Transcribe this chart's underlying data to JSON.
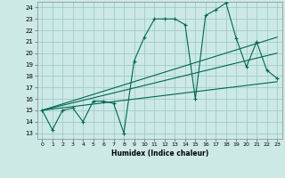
{
  "title": "",
  "xlabel": "Humidex (Indice chaleur)",
  "xlim": [
    -0.5,
    23.5
  ],
  "ylim": [
    12.5,
    24.5
  ],
  "xticks": [
    0,
    1,
    2,
    3,
    4,
    5,
    6,
    7,
    8,
    9,
    10,
    11,
    12,
    13,
    14,
    15,
    16,
    17,
    18,
    19,
    20,
    21,
    22,
    23
  ],
  "yticks": [
    13,
    14,
    15,
    16,
    17,
    18,
    19,
    20,
    21,
    22,
    23,
    24
  ],
  "background_color": "#cce9e5",
  "grid_color": "#a0ccc8",
  "line_color": "#006655",
  "series1_x": [
    0,
    1,
    2,
    3,
    4,
    5,
    6,
    7,
    8,
    9,
    10,
    11,
    12,
    13,
    14,
    15,
    16,
    17,
    18,
    19,
    20,
    21,
    22,
    23
  ],
  "series1_y": [
    15.0,
    13.3,
    15.0,
    15.2,
    14.0,
    15.8,
    15.8,
    15.6,
    13.0,
    19.3,
    21.4,
    23.0,
    23.0,
    23.0,
    22.5,
    16.0,
    23.3,
    23.8,
    24.4,
    21.3,
    18.8,
    21.0,
    18.5,
    17.8
  ],
  "trend1_x": [
    0,
    23
  ],
  "trend1_y": [
    15.0,
    21.4
  ],
  "trend2_x": [
    0,
    23
  ],
  "trend2_y": [
    15.0,
    20.0
  ],
  "trend3_x": [
    0,
    23
  ],
  "trend3_y": [
    15.0,
    17.5
  ]
}
